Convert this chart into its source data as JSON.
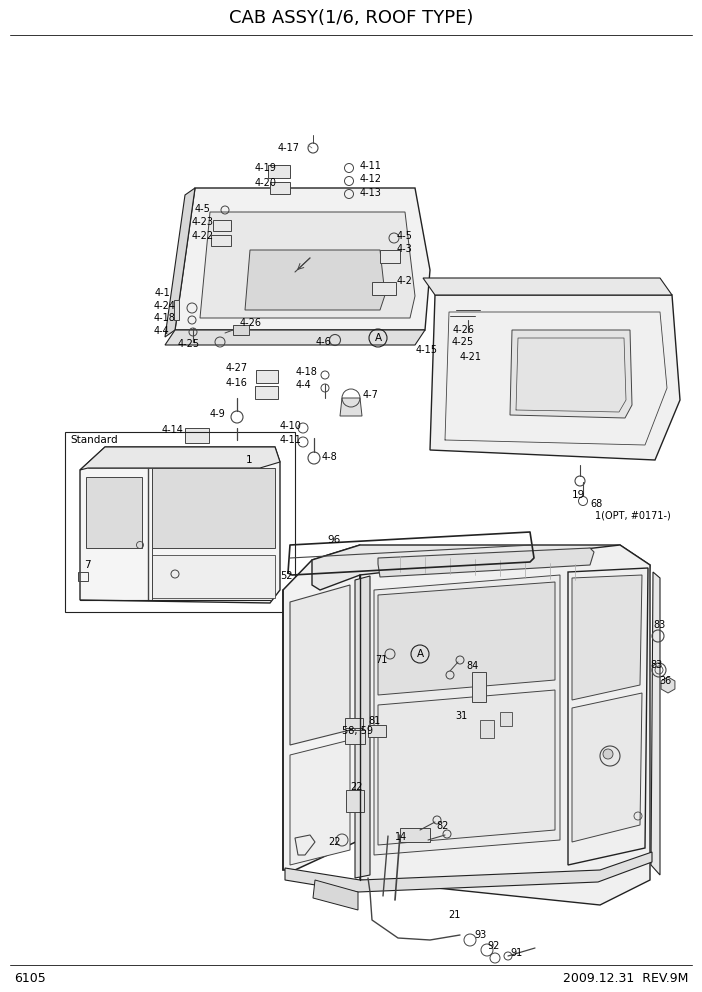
{
  "title": "CAB ASSY(1/6, ROOF TYPE)",
  "page_num": "6105",
  "date_rev": "2009.12.31  REV.9M",
  "bg_color": "#ffffff",
  "line_color": "#000000",
  "text_color": "#000000",
  "title_fontsize": 13,
  "label_fontsize": 7.0,
  "footer_fontsize": 9,
  "figw": 7.02,
  "figh": 9.92,
  "dpi": 100
}
